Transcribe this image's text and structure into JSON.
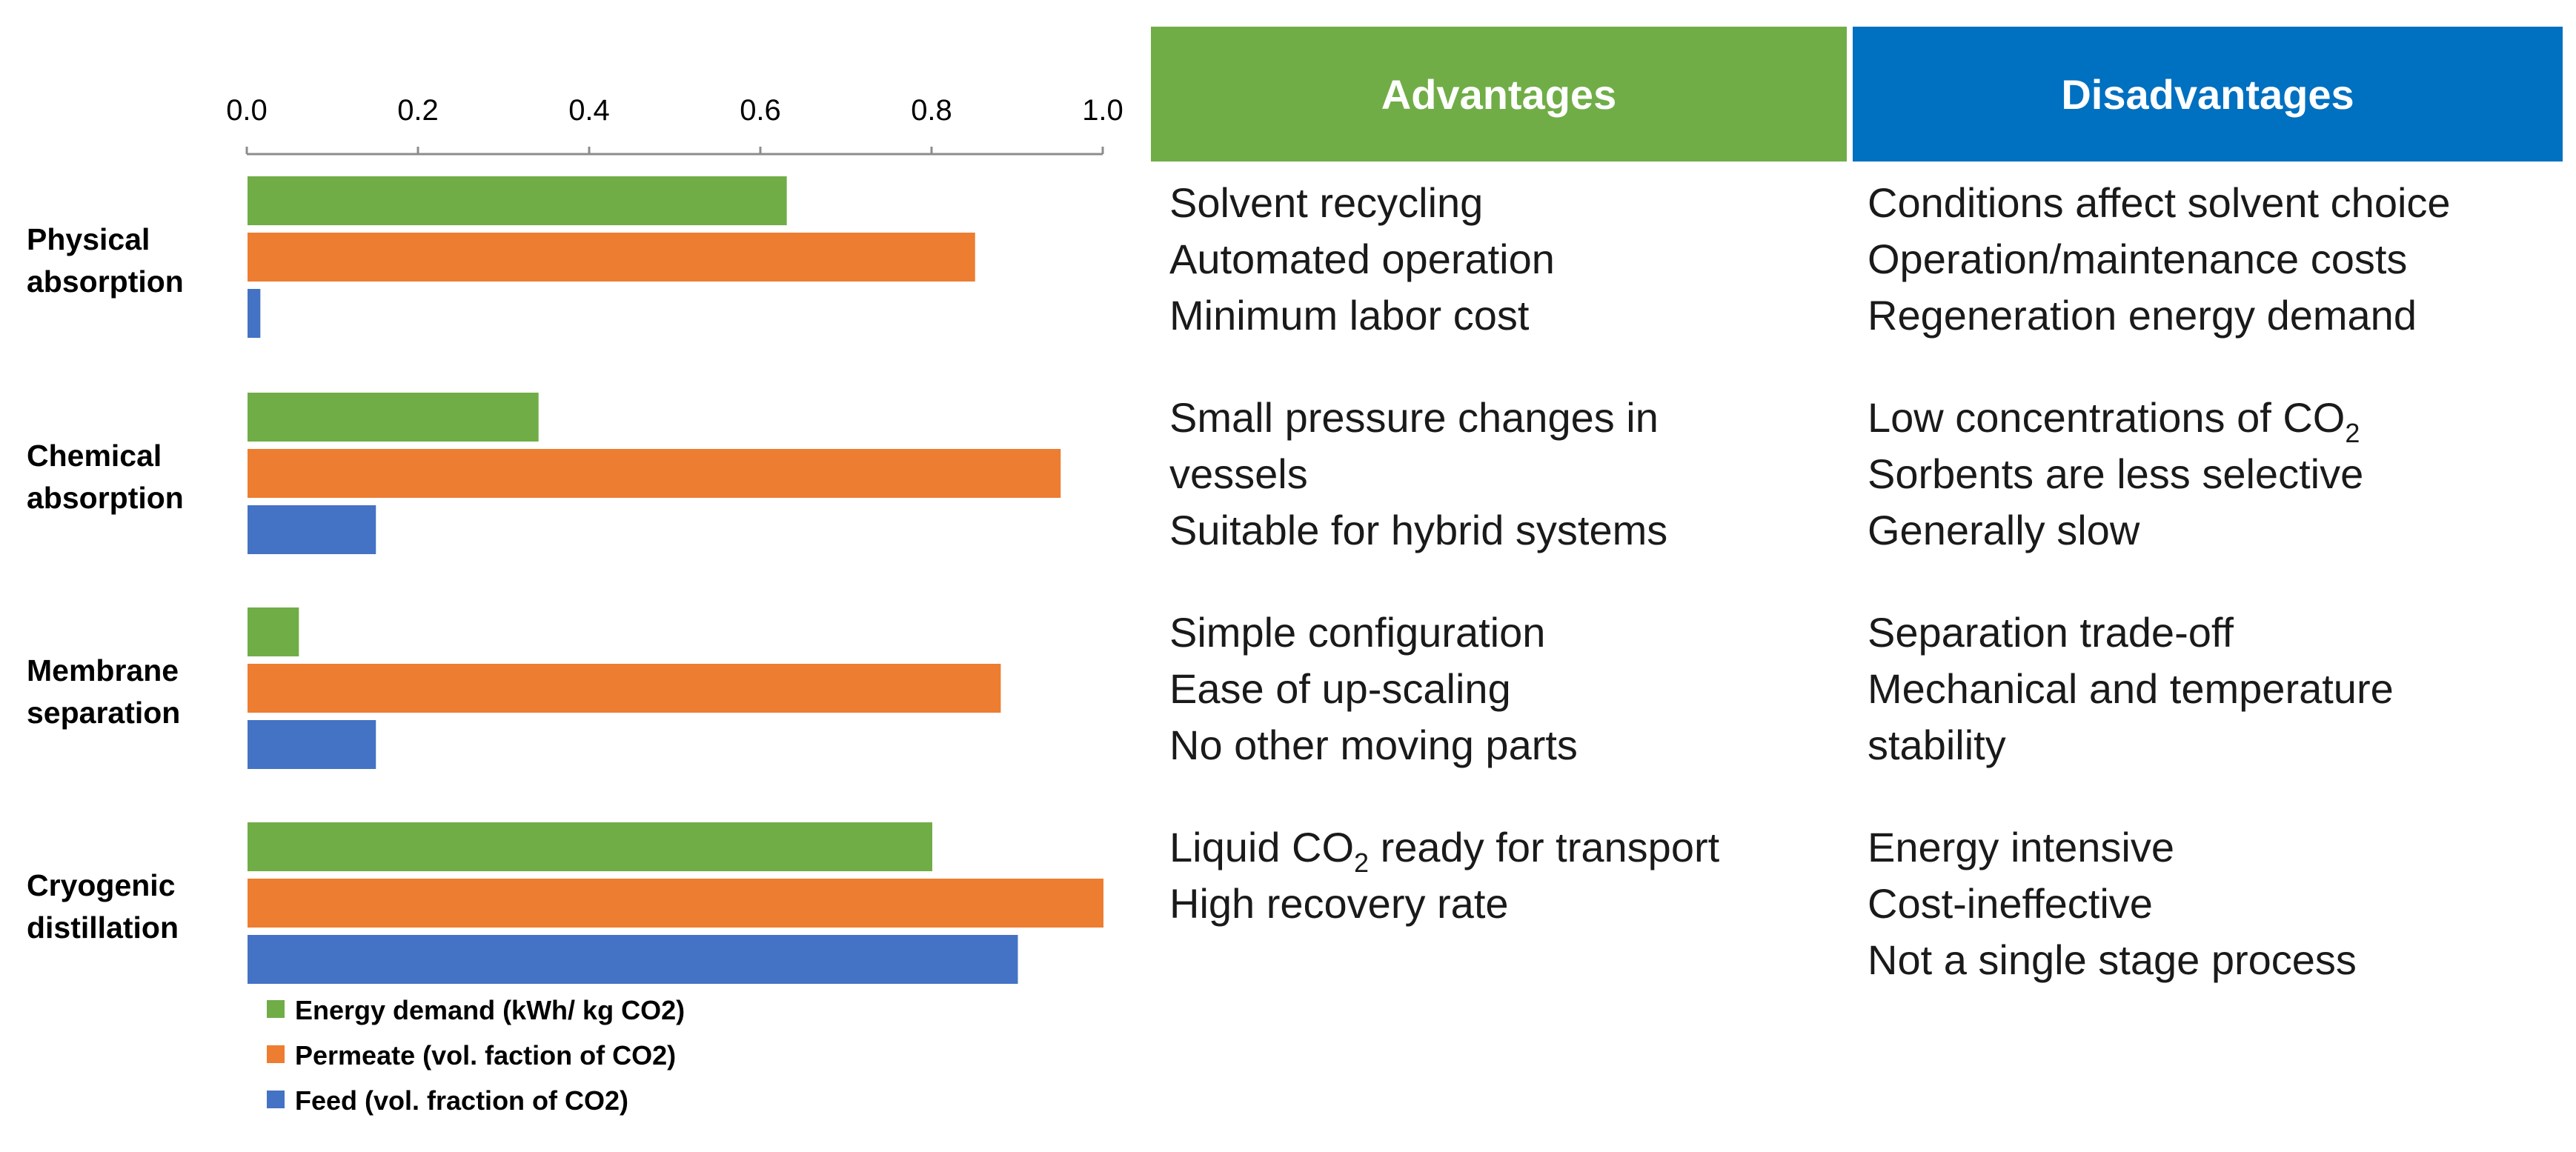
{
  "chart_data": {
    "type": "bar",
    "orientation": "horizontal",
    "categories": [
      [
        "Physical",
        "absorption"
      ],
      [
        "Chemical",
        "absorption"
      ],
      [
        "Membrane",
        "separation"
      ],
      [
        "Cryogenic",
        "distillation"
      ]
    ],
    "series": [
      {
        "name": "Energy demand (kWh/ kg CO2)",
        "color": "#70AD47",
        "values": [
          0.63,
          0.34,
          0.06,
          0.8
        ]
      },
      {
        "name": "Permeate (vol. faction of CO2)",
        "color": "#ED7D31",
        "values": [
          0.85,
          0.95,
          0.88,
          1.0
        ]
      },
      {
        "name": "Feed (vol. fraction of CO2)",
        "color": "#4472C4",
        "values": [
          0.015,
          0.15,
          0.15,
          0.9
        ]
      }
    ],
    "xlim": [
      0,
      1.0
    ],
    "xticks": [
      "0.0",
      "0.2",
      "0.4",
      "0.6",
      "0.8",
      "1.0"
    ],
    "x_axis_position": "top",
    "grid": false,
    "legend_position": "bottom"
  },
  "table": {
    "headers": {
      "advantages": "Advantages",
      "disadvantages": "Disadvantages"
    },
    "header_colors": {
      "advantages": "#70AD47",
      "disadvantages": "#0070C0"
    },
    "rows": [
      {
        "advantages": [
          "Solvent recycling",
          "Automated operation",
          "Minimum labor cost"
        ],
        "disadvantages": [
          "Conditions affect solvent choice",
          "Operation/maintenance costs",
          "Regeneration energy demand"
        ]
      },
      {
        "advantages": [
          "Small pressure changes in",
          "vessels",
          "Suitable for hybrid systems"
        ],
        "disadvantages": [
          {
            "pre": "Low concentrations of CO",
            "sub": "2",
            "post": ""
          },
          "Sorbents are less selective",
          "Generally slow"
        ]
      },
      {
        "advantages": [
          "Simple configuration",
          "Ease of up-scaling",
          "No other moving parts"
        ],
        "disadvantages": [
          "Separation trade-off",
          "Mechanical and temperature",
          "stability"
        ]
      },
      {
        "advantages": [
          {
            "pre": "Liquid CO",
            "sub": "2",
            "post": " ready for transport"
          },
          "High recovery rate"
        ],
        "disadvantages": [
          "Energy intensive",
          "Cost-ineffective",
          "Not a single stage process"
        ]
      }
    ]
  }
}
